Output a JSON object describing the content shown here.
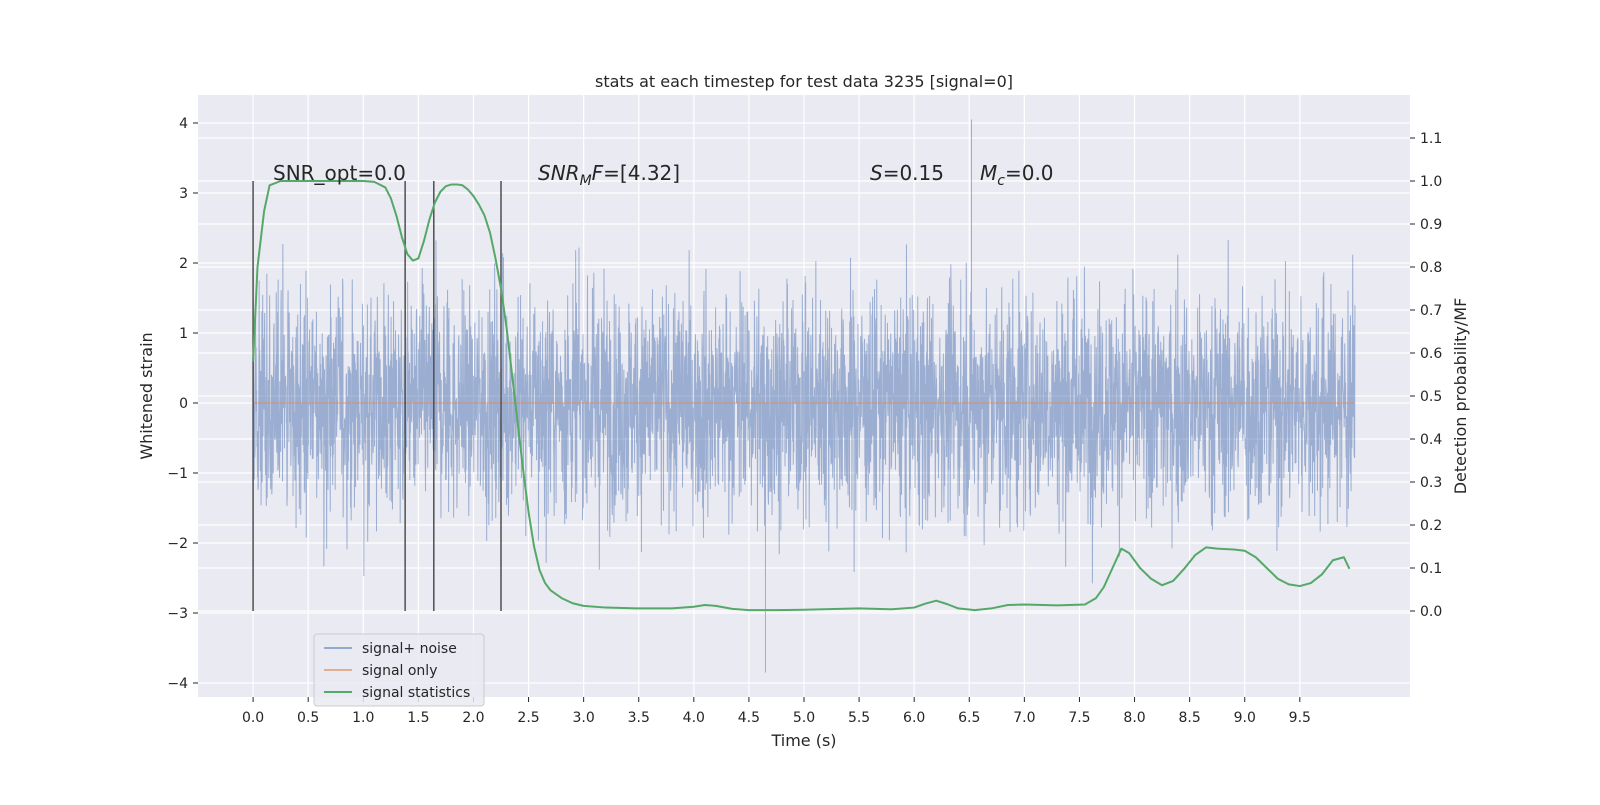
{
  "chart_data": {
    "type": "line",
    "title": "stats at each timestep for test data 3235 [signal=0]",
    "xlabel": "Time (s)",
    "ylabel_left": "Whitened strain",
    "ylabel_right": "Detection probability/MF",
    "xlim": [
      -0.5,
      10.5
    ],
    "ylim_left": [
      -4.2,
      4.4
    ],
    "ylim_right": [
      -0.2,
      1.2
    ],
    "x_ticks": [
      0.0,
      0.5,
      1.0,
      1.5,
      2.0,
      2.5,
      3.0,
      3.5,
      4.0,
      4.5,
      5.0,
      5.5,
      6.0,
      6.5,
      7.0,
      7.5,
      8.0,
      8.5,
      9.0,
      9.5
    ],
    "x_tick_labels": [
      "0.0",
      "0.5",
      "1.0",
      "1.5",
      "2.0",
      "2.5",
      "3.0",
      "3.5",
      "4.0",
      "4.5",
      "5.0",
      "5.5",
      "6.0",
      "6.5",
      "7.0",
      "7.5",
      "8.0",
      "8.5",
      "9.0",
      "9.5"
    ],
    "y_left_ticks": [
      4,
      3,
      2,
      1,
      0,
      -1,
      -2,
      -3,
      -4
    ],
    "y_left_tick_labels": [
      "4",
      "3",
      "2",
      "1",
      "0",
      "−1",
      "−2",
      "−3",
      "−4"
    ],
    "y_right_ticks": [
      1.1,
      1.0,
      0.9,
      0.8,
      0.7,
      0.6,
      0.5,
      0.4,
      0.3,
      0.2,
      0.1,
      0.0
    ],
    "y_right_tick_labels": [
      "1.1",
      "1.0",
      "0.9",
      "0.8",
      "0.7",
      "0.6",
      "0.5",
      "0.4",
      "0.3",
      "0.2",
      "0.1",
      "0.0"
    ],
    "grid": true,
    "legend_position": "lower-left",
    "annotations": {
      "snr_opt": "SNR_opt=0.0",
      "snr_mf": "=[4.32]",
      "s_value": "=0.15",
      "mc_value": "=0.0"
    },
    "vertical_markers_x": [
      0.0,
      1.38,
      1.64,
      2.25
    ],
    "vertical_marker_range_right": [
      0.0,
      1.0
    ],
    "series": [
      {
        "name": "signal+ noise",
        "color": "#4c72b0",
        "axis": "left",
        "x_range": [
          0.0,
          10.0
        ],
        "typical_amplitude": 1.3,
        "peak_max": 4.05,
        "peak_min": -3.85
      },
      {
        "name": "signal only",
        "color": "#dd8452",
        "axis": "left",
        "x": [
          0.0,
          10.0
        ],
        "y": [
          0.0,
          0.0
        ]
      },
      {
        "name": "signal statistics",
        "color": "#55a868",
        "axis": "right",
        "x": [
          0.0,
          0.04,
          0.1,
          0.15,
          0.25,
          0.4,
          0.6,
          0.8,
          1.0,
          1.1,
          1.2,
          1.25,
          1.3,
          1.35,
          1.4,
          1.45,
          1.5,
          1.55,
          1.6,
          1.65,
          1.7,
          1.75,
          1.8,
          1.85,
          1.9,
          1.95,
          2.0,
          2.05,
          2.1,
          2.15,
          2.2,
          2.25,
          2.3,
          2.35,
          2.4,
          2.45,
          2.5,
          2.55,
          2.6,
          2.65,
          2.7,
          2.8,
          2.9,
          3.0,
          3.2,
          3.5,
          3.8,
          4.0,
          4.1,
          4.2,
          4.35,
          4.5,
          4.75,
          5.0,
          5.5,
          5.8,
          6.0,
          6.1,
          6.2,
          6.3,
          6.4,
          6.55,
          6.7,
          6.85,
          7.0,
          7.3,
          7.55,
          7.65,
          7.72,
          7.8,
          7.88,
          7.95,
          8.05,
          8.15,
          8.25,
          8.35,
          8.45,
          8.55,
          8.65,
          8.75,
          8.9,
          9.0,
          9.1,
          9.2,
          9.3,
          9.4,
          9.5,
          9.6,
          9.7,
          9.8,
          9.9,
          9.95
        ],
        "y": [
          0.58,
          0.8,
          0.93,
          0.99,
          1.0,
          1.0,
          1.0,
          1.0,
          1.0,
          0.998,
          0.985,
          0.96,
          0.92,
          0.87,
          0.83,
          0.815,
          0.82,
          0.86,
          0.91,
          0.95,
          0.975,
          0.988,
          0.992,
          0.992,
          0.99,
          0.98,
          0.965,
          0.945,
          0.92,
          0.88,
          0.82,
          0.75,
          0.66,
          0.55,
          0.44,
          0.33,
          0.23,
          0.15,
          0.095,
          0.065,
          0.048,
          0.03,
          0.018,
          0.012,
          0.008,
          0.006,
          0.006,
          0.01,
          0.014,
          0.012,
          0.005,
          0.002,
          0.002,
          0.003,
          0.006,
          0.004,
          0.008,
          0.017,
          0.024,
          0.016,
          0.006,
          0.002,
          0.006,
          0.014,
          0.015,
          0.013,
          0.015,
          0.03,
          0.055,
          0.1,
          0.145,
          0.135,
          0.1,
          0.075,
          0.06,
          0.07,
          0.098,
          0.13,
          0.148,
          0.145,
          0.143,
          0.14,
          0.125,
          0.1,
          0.075,
          0.062,
          0.058,
          0.065,
          0.085,
          0.118,
          0.125,
          0.098
        ]
      }
    ]
  }
}
